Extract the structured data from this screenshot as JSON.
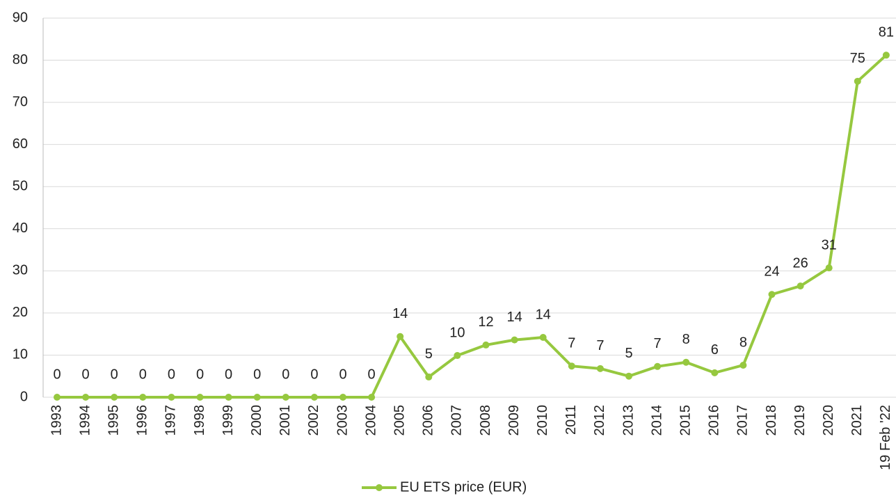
{
  "chart_data": {
    "type": "line",
    "categories": [
      "1993",
      "1994",
      "1995",
      "1996",
      "1997",
      "1998",
      "1999",
      "2000",
      "2001",
      "2002",
      "2003",
      "2004",
      "2005",
      "2006",
      "2007",
      "2008",
      "2009",
      "2010",
      "2011",
      "2012",
      "2013",
      "2014",
      "2015",
      "2016",
      "2017",
      "2018",
      "2019",
      "2020",
      "2021",
      "19 Feb '22"
    ],
    "series": [
      {
        "name": "EU ETS price (EUR)",
        "color": "#96c83f",
        "values": [
          0,
          0,
          0,
          0,
          0,
          0,
          0,
          0,
          0,
          0,
          0,
          0,
          14.4,
          4.8,
          9.9,
          12.4,
          13.6,
          14.2,
          7.4,
          6.8,
          5.0,
          7.3,
          8.3,
          5.8,
          7.6,
          24.4,
          26.4,
          30.7,
          75.0,
          81.2
        ],
        "value_labels": [
          "0",
          "0",
          "0",
          "0",
          "0",
          "0",
          "0",
          "0",
          "0",
          "0",
          "0",
          "0",
          "14",
          "5",
          "10",
          "12",
          "14",
          "14",
          "7",
          "7",
          "5",
          "7",
          "8",
          "6",
          "8",
          "24",
          "26",
          "31",
          "75",
          "81"
        ]
      }
    ],
    "ylim": [
      0,
      90
    ],
    "yticks": [
      0,
      10,
      20,
      30,
      40,
      50,
      60,
      70,
      80,
      90
    ],
    "grid": true,
    "legend": "bottom"
  }
}
